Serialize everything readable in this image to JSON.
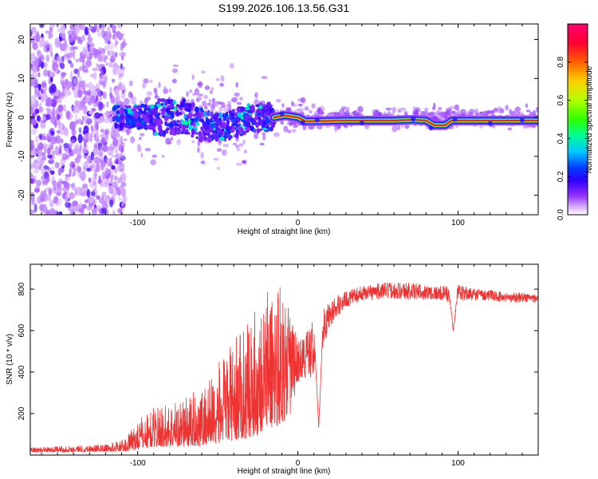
{
  "title": "S199.2026.106.13.56.G31",
  "chart_data": [
    {
      "type": "heatmap",
      "name": "spectrogram",
      "xlabel": "Height of straight line (km)",
      "ylabel": "Frequency (Hz)",
      "xlim": [
        -167,
        150
      ],
      "ylim": [
        -25,
        24
      ],
      "xticks": [
        -100,
        0,
        100
      ],
      "yticks": [
        -20,
        -10,
        0,
        10,
        20
      ],
      "colorbar": {
        "label": "Normalized spectral amplitude",
        "range": [
          0,
          1
        ],
        "ticks": [
          "0.0",
          "0.2",
          "0.4",
          "0.6",
          "0.8"
        ],
        "ticks_value": [
          0,
          0.2,
          0.4,
          0.6,
          0.8
        ],
        "colors": [
          "#ffffff",
          "#c080ff",
          "#8000ff",
          "#0000ff",
          "#00c0ff",
          "#00ff80",
          "#40ff00",
          "#c0ff00",
          "#ffc000",
          "#ff4000",
          "#ff0040",
          "#ff0080"
        ]
      },
      "description_values": {
        "noise_region_x": [
          -167,
          -108
        ],
        "transition_region_x": [
          -115,
          -15
        ],
        "tone_x": [
          -15,
          150
        ],
        "tone_frequency_hz": [
          [
            -15,
            0.0
          ],
          [
            -8,
            0.5
          ],
          [
            0,
            0.0
          ],
          [
            5,
            -1.0
          ],
          [
            30,
            -0.8
          ],
          [
            60,
            -0.8
          ],
          [
            72,
            -0.6
          ],
          [
            80,
            -0.8
          ],
          [
            85,
            -2.0
          ],
          [
            92,
            -2.0
          ],
          [
            96,
            -0.8
          ],
          [
            150,
            -0.8
          ]
        ]
      }
    },
    {
      "type": "line",
      "name": "snr",
      "xlabel": "Height of straight line (km)",
      "ylabel": "SNR (10 * v/v)",
      "xlim": [
        -167,
        150
      ],
      "ylim": [
        0,
        920
      ],
      "xticks": [
        -100,
        0,
        100
      ],
      "yticks": [
        200,
        400,
        600,
        800
      ],
      "color": "#ee3333",
      "envelope": {
        "x": [
          -167,
          -150,
          -120,
          -108,
          -100,
          -90,
          -80,
          -70,
          -60,
          -50,
          -40,
          -30,
          -25,
          -20,
          -15,
          -10,
          -5,
          0,
          5,
          10,
          15,
          20,
          25,
          30,
          40,
          50,
          60,
          70,
          80,
          90,
          95,
          97,
          100,
          110,
          120,
          130,
          140,
          150
        ],
        "mean": [
          22,
          25,
          30,
          40,
          80,
          110,
          120,
          130,
          150,
          200,
          250,
          300,
          330,
          380,
          400,
          420,
          430,
          450,
          480,
          520,
          600,
          680,
          720,
          750,
          780,
          790,
          795,
          790,
          785,
          780,
          775,
          760,
          780,
          775,
          770,
          760,
          760,
          755
        ],
        "amplitude": [
          10,
          12,
          15,
          25,
          60,
          80,
          90,
          100,
          120,
          160,
          200,
          240,
          260,
          280,
          300,
          290,
          280,
          100,
          120,
          150,
          100,
          60,
          50,
          40,
          35,
          40,
          40,
          45,
          35,
          35,
          45,
          80,
          40,
          30,
          25,
          25,
          25,
          20
        ]
      },
      "dips": [
        {
          "x": 13,
          "value": 130
        },
        {
          "x": 97,
          "value": 600
        }
      ]
    }
  ]
}
